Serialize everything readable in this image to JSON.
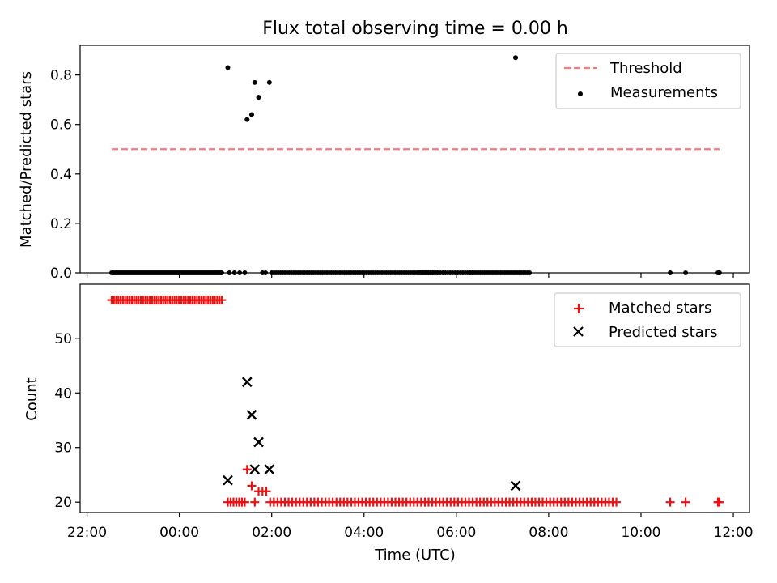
{
  "title": "Flux total observing time = 0.00 h",
  "colors": {
    "threshold": "#ff7777",
    "measurement": "#000000",
    "matched": "#ee1111",
    "predicted": "#000000"
  },
  "chart_data": [
    {
      "type": "scatter",
      "ylabel": "Matched/Predicted stars",
      "ylim": [
        0,
        0.92
      ],
      "xlim_hours": [
        21.85,
        36.35
      ],
      "yticks": [
        {
          "v": 0.0,
          "label": "0.0"
        },
        {
          "v": 0.2,
          "label": "0.2"
        },
        {
          "v": 0.4,
          "label": "0.4"
        },
        {
          "v": 0.6,
          "label": "0.6"
        },
        {
          "v": 0.8,
          "label": "0.8"
        }
      ],
      "legend": {
        "placement": "top-right",
        "threshold_label": "Threshold",
        "measurements_label": "Measurements"
      },
      "threshold": {
        "x": [
          "22:32",
          "35:42"
        ],
        "y": 0.5
      },
      "measurements": {
        "zero_ranges": [
          [
            "22:32",
            "24:55",
            70
          ],
          [
            "25:05",
            "25:25",
            4
          ],
          [
            "25:48",
            "25:52",
            2
          ],
          [
            "26:00",
            "29:35",
            76
          ],
          [
            "29:10",
            "30:18",
            22
          ],
          [
            "30:18",
            "31:35",
            30
          ],
          [
            "34:38",
            "34:38",
            1
          ],
          [
            "34:58",
            "34:58",
            1
          ],
          [
            "35:40",
            "35:42",
            2
          ]
        ],
        "points": [
          [
            "25:03",
            0.83
          ],
          [
            "25:28",
            0.62
          ],
          [
            "25:34",
            0.64
          ],
          [
            "25:38",
            0.77
          ],
          [
            "25:43",
            0.71
          ],
          [
            "25:57",
            0.77
          ],
          [
            "31:17",
            0.87
          ]
        ]
      }
    },
    {
      "type": "scatter",
      "ylabel": "Count",
      "xlabel": "Time (UTC)",
      "ylim": [
        18.1,
        59.9
      ],
      "xlim_hours": [
        21.85,
        36.35
      ],
      "yticks": [
        {
          "v": 20,
          "label": "20"
        },
        {
          "v": 30,
          "label": "30"
        },
        {
          "v": 40,
          "label": "40"
        },
        {
          "v": 50,
          "label": "50"
        }
      ],
      "xticks": [
        {
          "v": 22,
          "label": "22:00"
        },
        {
          "v": 24,
          "label": "00:00"
        },
        {
          "v": 26,
          "label": "02:00"
        },
        {
          "v": 28,
          "label": "04:00"
        },
        {
          "v": 30,
          "label": "06:00"
        },
        {
          "v": 32,
          "label": "08:00"
        },
        {
          "v": 34,
          "label": "10:00"
        },
        {
          "v": 36,
          "label": "12:00"
        }
      ],
      "legend": {
        "placement": "top-right",
        "matched_label": "Matched stars",
        "predicted_label": "Predicted stars"
      },
      "matched": {
        "ranges": [
          [
            "22:32",
            "24:55",
            57,
            50
          ],
          [
            "25:03",
            "25:25",
            20,
            7
          ],
          [
            "25:58",
            "33:28",
            20,
            95
          ]
        ],
        "points": [
          [
            "25:28",
            26
          ],
          [
            "25:34",
            23
          ],
          [
            "25:38",
            20
          ],
          [
            "25:43",
            22
          ],
          [
            "25:48",
            22
          ],
          [
            "25:53",
            22
          ],
          [
            "34:38",
            20
          ],
          [
            "34:58",
            20
          ],
          [
            "35:40",
            20
          ],
          [
            "35:42",
            20
          ]
        ]
      },
      "predicted": {
        "points": [
          [
            "25:03",
            24
          ],
          [
            "25:28",
            42
          ],
          [
            "25:34",
            36
          ],
          [
            "25:38",
            26
          ],
          [
            "25:43",
            31
          ],
          [
            "25:57",
            26
          ],
          [
            "31:17",
            23
          ]
        ]
      }
    }
  ]
}
